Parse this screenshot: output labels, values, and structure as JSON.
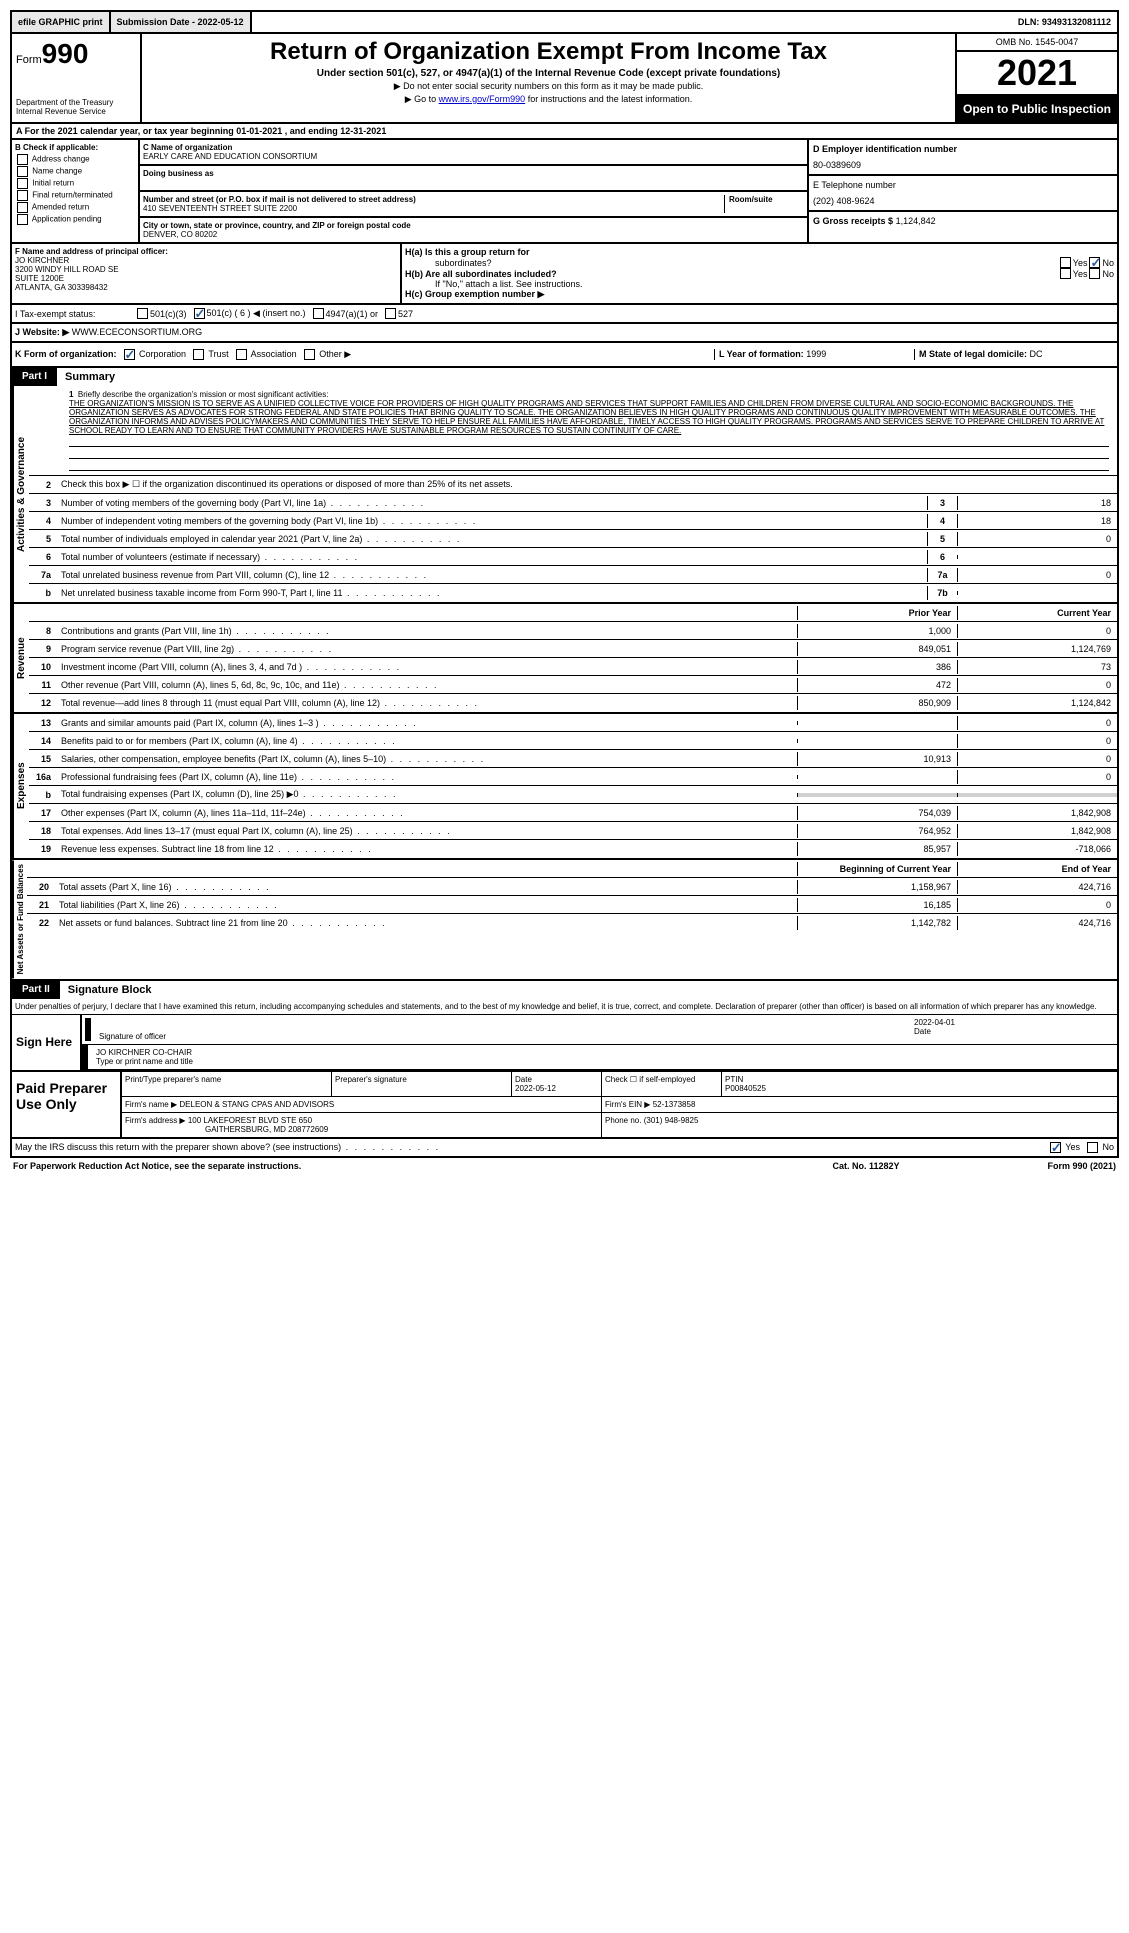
{
  "top": {
    "efile": "efile GRAPHIC print",
    "submission": "Submission Date - 2022-05-12",
    "dln": "DLN: 93493132081112"
  },
  "header": {
    "form_label": "Form",
    "form_number": "990",
    "title": "Return of Organization Exempt From Income Tax",
    "subtitle": "Under section 501(c), 527, or 4947(a)(1) of the Internal Revenue Code (except private foundations)",
    "note1": "▶ Do not enter social security numbers on this form as it may be made public.",
    "note2_pre": "▶ Go to ",
    "note2_link": "www.irs.gov/Form990",
    "note2_post": " for instructions and the latest information.",
    "dept": "Department of the Treasury",
    "irs": "Internal Revenue Service",
    "omb": "OMB No. 1545-0047",
    "year": "2021",
    "inspection": "Open to Public Inspection"
  },
  "section_a": "A For the 2021 calendar year, or tax year beginning 01-01-2021   , and ending 12-31-2021",
  "section_b": {
    "header": "B Check if applicable:",
    "opts": [
      "Address change",
      "Name change",
      "Initial return",
      "Final return/terminated",
      "Amended return",
      "Application pending"
    ]
  },
  "section_c": {
    "name_lbl": "C Name of organization",
    "name": "EARLY CARE AND EDUCATION CONSORTIUM",
    "dba_lbl": "Doing business as",
    "addr_lbl": "Number and street (or P.O. box if mail is not delivered to street address)",
    "room_lbl": "Room/suite",
    "addr": "410 SEVENTEENTH STREET SUITE 2200",
    "city_lbl": "City or town, state or province, country, and ZIP or foreign postal code",
    "city": "DENVER, CO  80202"
  },
  "section_d": {
    "ein_lbl": "D Employer identification number",
    "ein": "80-0389609",
    "phone_lbl": "E Telephone number",
    "phone": "(202) 408-9624",
    "gross_lbl": "G Gross receipts $",
    "gross": "1,124,842"
  },
  "section_f": {
    "lbl": "F Name and address of principal officer:",
    "name": "JO KIRCHNER",
    "addr1": "3200 WINDY HILL ROAD SE",
    "addr2": "SUITE 1200E",
    "city": "ATLANTA, GA  303398432"
  },
  "section_h": {
    "a_lbl": "H(a)  Is this a group return for",
    "a_lbl2": "subordinates?",
    "b_lbl": "H(b)  Are all subordinates included?",
    "b_note": "If \"No,\" attach a list. See instructions.",
    "c_lbl": "H(c)  Group exemption number ▶"
  },
  "section_i": {
    "lbl": "I    Tax-exempt status:",
    "opts": [
      "501(c)(3)",
      "501(c) ( 6 ) ◀ (insert no.)",
      "4947(a)(1) or",
      "527"
    ]
  },
  "section_j": {
    "lbl": "J   Website: ▶",
    "val": "WWW.ECECONSORTIUM.ORG"
  },
  "section_k": {
    "lbl": "K Form of organization:",
    "opts": [
      "Corporation",
      "Trust",
      "Association",
      "Other ▶"
    ],
    "l_lbl": "L Year of formation:",
    "l_val": "1999",
    "m_lbl": "M State of legal domicile:",
    "m_val": "DC"
  },
  "part1": {
    "label": "Part I",
    "title": "Summary",
    "side1": "Activities & Governance",
    "side2": "Revenue",
    "side3": "Expenses",
    "side4": "Net Assets or Fund Balances",
    "line1_lbl": "Briefly describe the organization's mission or most significant activities:",
    "mission": "THE ORGANIZATION'S MISSION IS TO SERVE AS A UNIFIED COLLECTIVE VOICE FOR PROVIDERS OF HIGH QUALITY PROGRAMS AND SERVICES THAT SUPPORT FAMILIES AND CHILDREN FROM DIVERSE CULTURAL AND SOCIO-ECONOMIC BACKGROUNDS. THE ORGANIZATION SERVES AS ADVOCATES FOR STRONG FEDERAL AND STATE POLICIES THAT BRING QUALITY TO SCALE. THE ORGANIZATION BELIEVES IN HIGH QUALITY PROGRAMS AND CONTINUOUS QUALITY IMPROVEMENT WITH MEASURABLE OUTCOMES. THE ORGANIZATION INFORMS AND ADVISES POLICYMAKERS AND COMMUNITIES THEY SERVE TO HELP ENSURE ALL FAMILIES HAVE AFFORDABLE, TIMELY ACCESS TO HIGH QUALITY PROGRAMS. PROGRAMS AND SERVICES SERVE TO PREPARE CHILDREN TO ARRIVE AT SCHOOL READY TO LEARN AND TO ENSURE THAT COMMUNITY PROVIDERS HAVE SUSTAINABLE PROGRAM RESOURCES TO SUSTAIN CONTINUITY OF CARE.",
    "line2": "Check this box ▶ ☐ if the organization discontinued its operations or disposed of more than 25% of its net assets.",
    "rows_gov": [
      {
        "n": "3",
        "d": "Number of voting members of the governing body (Part VI, line 1a)",
        "b": "3",
        "v": "18"
      },
      {
        "n": "4",
        "d": "Number of independent voting members of the governing body (Part VI, line 1b)",
        "b": "4",
        "v": "18"
      },
      {
        "n": "5",
        "d": "Total number of individuals employed in calendar year 2021 (Part V, line 2a)",
        "b": "5",
        "v": "0"
      },
      {
        "n": "6",
        "d": "Total number of volunteers (estimate if necessary)",
        "b": "6",
        "v": ""
      },
      {
        "n": "7a",
        "d": "Total unrelated business revenue from Part VIII, column (C), line 12",
        "b": "7a",
        "v": "0"
      },
      {
        "n": "b",
        "d": "Net unrelated business taxable income from Form 990-T, Part I, line 11",
        "b": "7b",
        "v": ""
      }
    ],
    "col_prior": "Prior Year",
    "col_current": "Current Year",
    "rows_rev": [
      {
        "n": "8",
        "d": "Contributions and grants (Part VIII, line 1h)",
        "p": "1,000",
        "c": "0"
      },
      {
        "n": "9",
        "d": "Program service revenue (Part VIII, line 2g)",
        "p": "849,051",
        "c": "1,124,769"
      },
      {
        "n": "10",
        "d": "Investment income (Part VIII, column (A), lines 3, 4, and 7d )",
        "p": "386",
        "c": "73"
      },
      {
        "n": "11",
        "d": "Other revenue (Part VIII, column (A), lines 5, 6d, 8c, 9c, 10c, and 11e)",
        "p": "472",
        "c": "0"
      },
      {
        "n": "12",
        "d": "Total revenue—add lines 8 through 11 (must equal Part VIII, column (A), line 12)",
        "p": "850,909",
        "c": "1,124,842"
      }
    ],
    "rows_exp": [
      {
        "n": "13",
        "d": "Grants and similar amounts paid (Part IX, column (A), lines 1–3 )",
        "p": "",
        "c": "0"
      },
      {
        "n": "14",
        "d": "Benefits paid to or for members (Part IX, column (A), line 4)",
        "p": "",
        "c": "0"
      },
      {
        "n": "15",
        "d": "Salaries, other compensation, employee benefits (Part IX, column (A), lines 5–10)",
        "p": "10,913",
        "c": "0"
      },
      {
        "n": "16a",
        "d": "Professional fundraising fees (Part IX, column (A), line 11e)",
        "p": "",
        "c": "0"
      },
      {
        "n": "b",
        "d": "Total fundraising expenses (Part IX, column (D), line 25) ▶0",
        "p": "shaded",
        "c": "shaded"
      },
      {
        "n": "17",
        "d": "Other expenses (Part IX, column (A), lines 11a–11d, 11f–24e)",
        "p": "754,039",
        "c": "1,842,908"
      },
      {
        "n": "18",
        "d": "Total expenses. Add lines 13–17 (must equal Part IX, column (A), line 25)",
        "p": "764,952",
        "c": "1,842,908"
      },
      {
        "n": "19",
        "d": "Revenue less expenses. Subtract line 18 from line 12",
        "p": "85,957",
        "c": "-718,066"
      }
    ],
    "col_begin": "Beginning of Current Year",
    "col_end": "End of Year",
    "rows_net": [
      {
        "n": "20",
        "d": "Total assets (Part X, line 16)",
        "p": "1,158,967",
        "c": "424,716"
      },
      {
        "n": "21",
        "d": "Total liabilities (Part X, line 26)",
        "p": "16,185",
        "c": "0"
      },
      {
        "n": "22",
        "d": "Net assets or fund balances. Subtract line 21 from line 20",
        "p": "1,142,782",
        "c": "424,716"
      }
    ]
  },
  "part2": {
    "label": "Part II",
    "title": "Signature Block",
    "perjury": "Under penalties of perjury, I declare that I have examined this return, including accompanying schedules and statements, and to the best of my knowledge and belief, it is true, correct, and complete. Declaration of preparer (other than officer) is based on all information of which preparer has any knowledge.",
    "sign_here": "Sign Here",
    "sig_officer": "Signature of officer",
    "date_lbl": "Date",
    "date_val": "2022-04-01",
    "officer_name": "JO KIRCHNER  CO-CHAIR",
    "type_name": "Type or print name and title",
    "paid_prep": "Paid Preparer Use Only",
    "prep_name_lbl": "Print/Type preparer's name",
    "prep_sig_lbl": "Preparer's signature",
    "prep_date_lbl": "Date",
    "prep_date": "2022-05-12",
    "check_self": "Check ☐ if self-employed",
    "ptin_lbl": "PTIN",
    "ptin": "P00840525",
    "firm_name_lbl": "Firm's name     ▶",
    "firm_name": "DELEON & STANG CPAS AND ADVISORS",
    "firm_ein_lbl": "Firm's EIN ▶",
    "firm_ein": "52-1373858",
    "firm_addr_lbl": "Firm's address ▶",
    "firm_addr": "100 LAKEFOREST BLVD STE 650",
    "firm_city": "GAITHERSBURG, MD  208772609",
    "phone_lbl": "Phone no.",
    "phone": "(301) 948-9825"
  },
  "footer": {
    "discuss": "May the IRS discuss this return with the preparer shown above? (see instructions)",
    "yes": "Yes",
    "no": "No",
    "paperwork": "For Paperwork Reduction Act Notice, see the separate instructions.",
    "cat": "Cat. No. 11282Y",
    "form": "Form 990 (2021)"
  }
}
